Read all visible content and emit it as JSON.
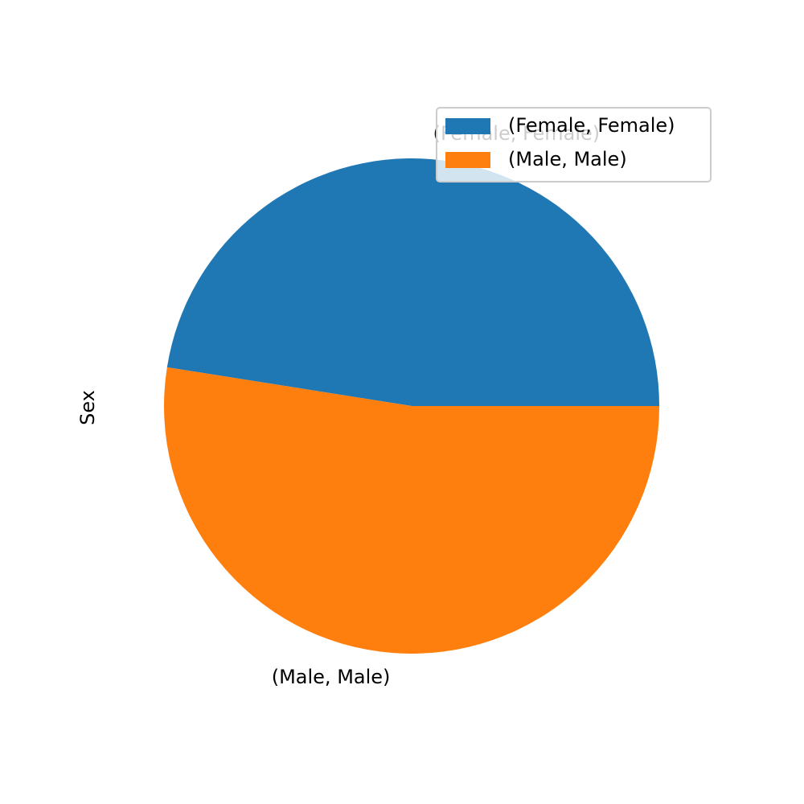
{
  "chart_data": {
    "type": "pie",
    "ylabel": "Sex",
    "labels": [
      "(Female, Female)",
      "(Male, Male)"
    ],
    "values": [
      47.5,
      52.5
    ],
    "colors": [
      "#1f77b4",
      "#ff7f0e"
    ],
    "start_angle_deg": 0,
    "direction": "counterclockwise",
    "legend": {
      "placement": "upper right",
      "entries": [
        "(Female, Female)",
        "(Male, Male)"
      ]
    }
  }
}
